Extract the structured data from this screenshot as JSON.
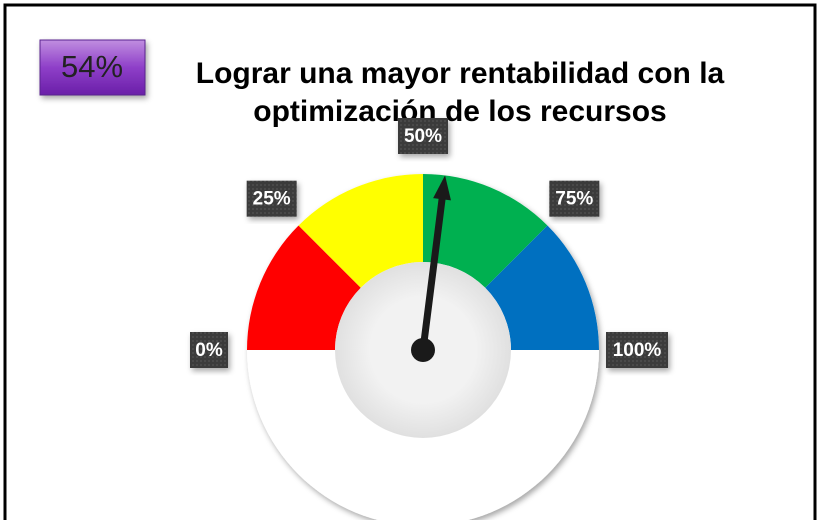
{
  "chart_data": {
    "type": "gauge",
    "title": [
      "Lograr una mayor rentabilidad con la",
      "optimización de los recursos"
    ],
    "values": [
      54
    ],
    "value_labels": [
      "54%"
    ],
    "ylim": [
      0,
      100
    ],
    "yticks": [
      {
        "value": 0,
        "label": "0%"
      },
      {
        "value": 25,
        "label": "25%"
      },
      {
        "value": 50,
        "label": "50%"
      },
      {
        "value": 75,
        "label": "75%"
      },
      {
        "value": 100,
        "label": "100%"
      }
    ],
    "bands": [
      {
        "from": 0,
        "to": 25,
        "color": "#ff0000"
      },
      {
        "from": 25,
        "to": 50,
        "color": "#ffff00"
      },
      {
        "from": 50,
        "to": 75,
        "color": "#00b050"
      },
      {
        "from": 75,
        "to": 100,
        "color": "#0070c0"
      }
    ]
  }
}
